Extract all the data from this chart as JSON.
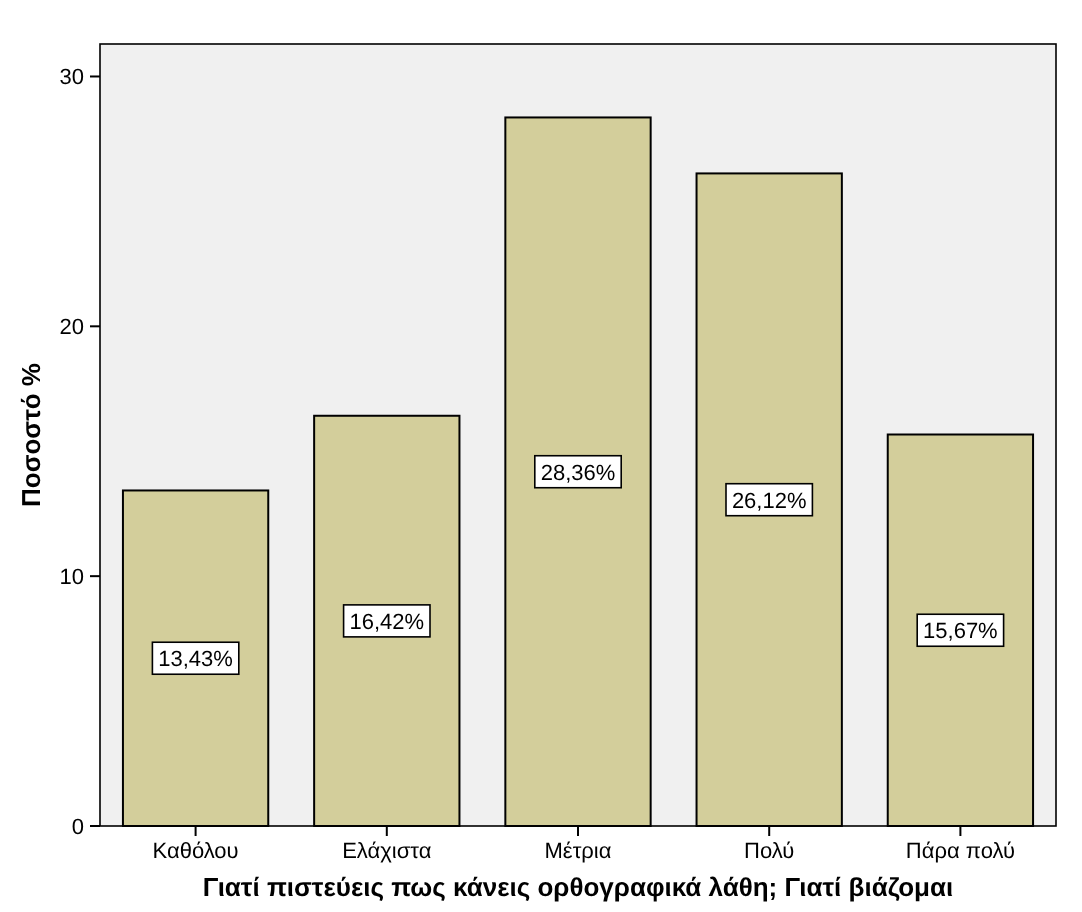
{
  "chart_data": {
    "type": "bar",
    "xlabel": "Γιατί πιστεύεις πως κάνεις ορθογραφικά λάθη; Γιατί βιάζομαι",
    "ylabel": "Ποσοστό %",
    "categories": [
      "Καθόλου",
      "Ελάχιστα",
      "Μέτρια",
      "Πολύ",
      "Πάρα πολύ"
    ],
    "values": [
      13.43,
      16.42,
      28.36,
      26.12,
      15.67
    ],
    "value_labels": [
      "13,43%",
      "16,42%",
      "28,36%",
      "26,12%",
      "15,67%"
    ],
    "color": "#d3ce9b",
    "ylim": [
      0,
      31.3
    ],
    "yticks": [
      0,
      10,
      20,
      30
    ],
    "grid": false
  }
}
